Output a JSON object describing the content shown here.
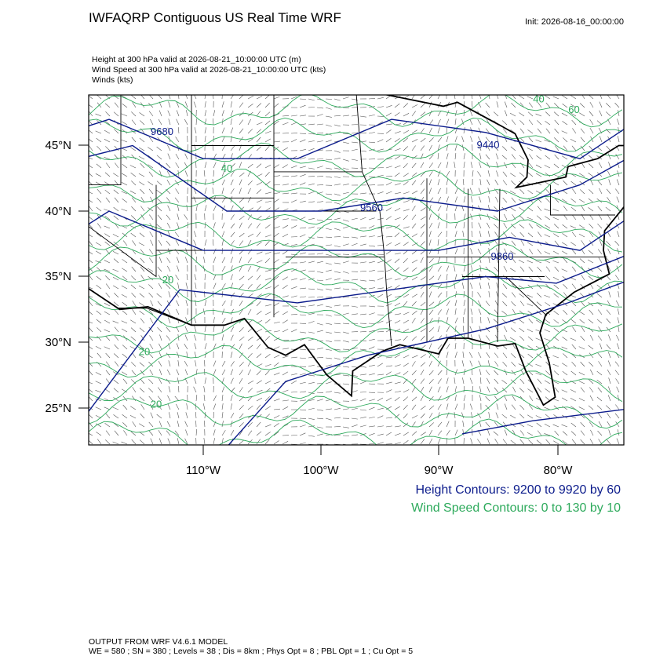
{
  "header": {
    "title": "IWFAQRP Contiguous US Real Time WRF",
    "init": "Init: 2026-08-16_00:00:00",
    "fields": [
      "Height at 300 hPa valid at 2026-08-21_10:00:00 UTC   (m)",
      "Wind Speed at 300 hPa valid at 2026-08-21_10:00:00 UTC   (kts)",
      "Winds   (kts)"
    ]
  },
  "map": {
    "lat_labels": [
      "45°N",
      "40°N",
      "35°N",
      "30°N",
      "25°N"
    ],
    "lon_labels": [
      "110°W",
      "100°W",
      "90°W",
      "80°W"
    ],
    "height_labels": [
      "9680",
      "9440",
      "9560",
      "9860"
    ],
    "speed_labels": [
      "40",
      "60",
      "40",
      "20",
      "20",
      "20"
    ]
  },
  "legend": {
    "height": "Height Contours: 9200 to 9920 by 60",
    "speed": "Wind Speed Contours: 0 to 130 by 10"
  },
  "footer": {
    "model": "OUTPUT FROM WRF V4.6.1 MODEL",
    "options": "WE = 580 ; SN = 380 ; Levels = 38 ; Dis = 8km ; Phys Opt = 8 ; PBL Opt = 1 ; Cu Opt = 5"
  }
}
